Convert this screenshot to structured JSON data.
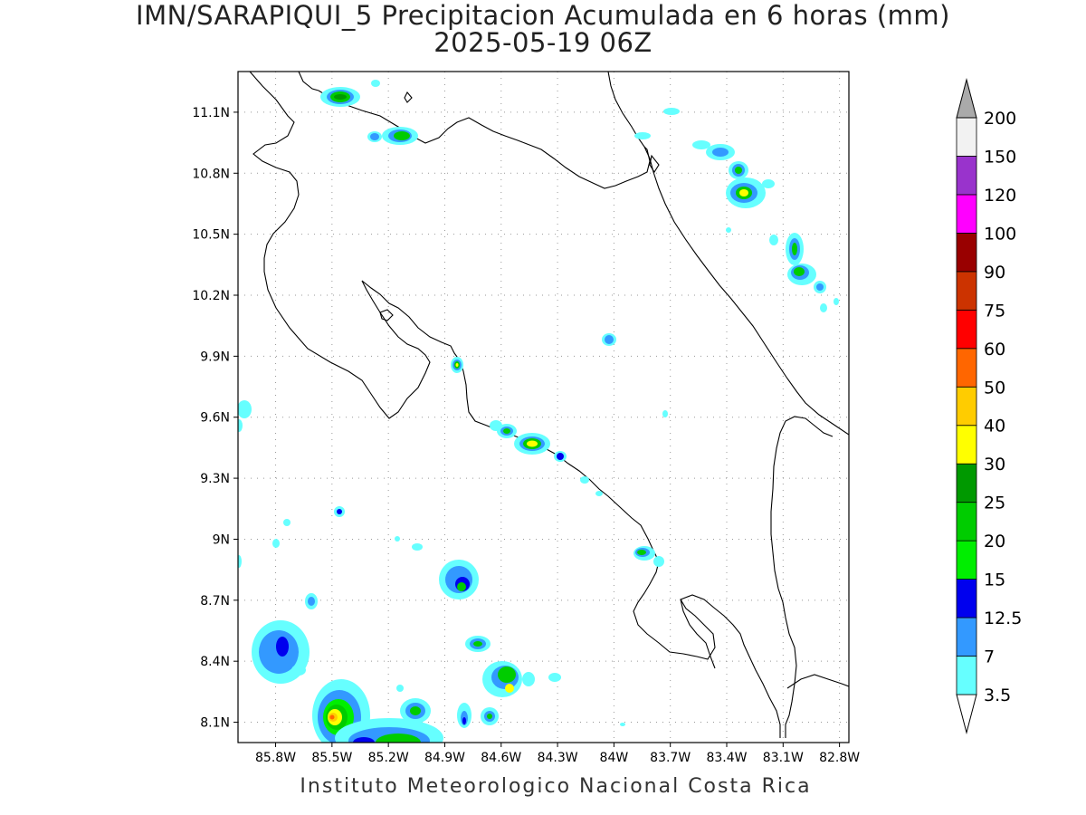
{
  "title": {
    "line1": "IMN/SARAPIQUI_5 Precipitacion Acumulada en 6 horas (mm)",
    "line2": "2025-05-19 06Z"
  },
  "footer": "Instituto Meteorologico Nacional Costa Rica",
  "map": {
    "lat_ticks": [
      "11.1N",
      "10.8N",
      "10.5N",
      "10.2N",
      "9.9N",
      "9.6N",
      "9.3N",
      "9N",
      "8.7N",
      "8.4N",
      "8.1N"
    ],
    "lon_ticks": [
      "85.8W",
      "85.5W",
      "85.2W",
      "84.9W",
      "84.6W",
      "84.3W",
      "84W",
      "83.7W",
      "83.4W",
      "83.1W",
      "82.8W"
    ],
    "lat_range": [
      8.0,
      11.3
    ],
    "lon_range": [
      -86.0,
      -82.75
    ],
    "grid": "dotted"
  },
  "colorbar": {
    "levels": [
      "3.5",
      "7",
      "12.5",
      "15",
      "20",
      "25",
      "30",
      "40",
      "50",
      "60",
      "75",
      "90",
      "100",
      "120",
      "150",
      "200"
    ],
    "colors": [
      "#66ffff",
      "#3399ff",
      "#0000ee",
      "#00ee00",
      "#00cc00",
      "#009900",
      "#ffff00",
      "#ffcc00",
      "#ff6600",
      "#ff0000",
      "#cc3300",
      "#990000",
      "#ff00ff",
      "#9933cc",
      "#f2f2f2",
      "#aaaaaa"
    ]
  }
}
